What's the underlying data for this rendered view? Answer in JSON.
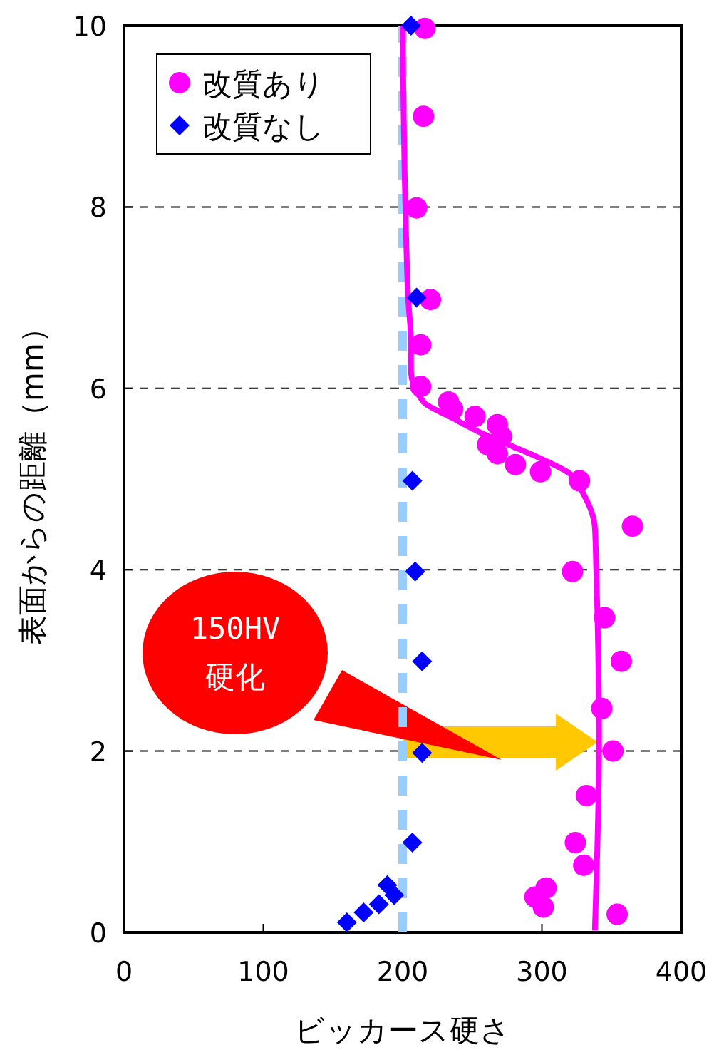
{
  "chart_data": {
    "type": "scatter",
    "xlabel": "ビッカース硬さ",
    "ylabel": "表面からの距離（mm）",
    "xlim": [
      0,
      400
    ],
    "xticks": [
      0,
      100,
      200,
      300,
      400
    ],
    "ylim": [
      0,
      10
    ],
    "yticks": [
      0,
      2,
      4,
      6,
      8,
      10
    ],
    "grid": "y",
    "legend": "top left",
    "annotations": [
      "150HV\n硬化"
    ],
    "series": [
      {
        "type": "line",
        "color": "#99ccff",
        "line_style": "dashed",
        "marker": "none",
        "x": [
          200,
          200
        ],
        "values": [
          0,
          10
        ]
      },
      {
        "type": "line",
        "color": "#ff00ff",
        "line_style": "solid",
        "marker": "none",
        "x": [
          200,
          202,
          204,
          206,
          206,
          215,
          235,
          259,
          279,
          300,
          320,
          330,
          338,
          339,
          341,
          338
        ],
        "values": [
          10,
          8,
          7,
          6.5,
          6.2,
          5.85,
          5.68,
          5.49,
          5.36,
          5.22,
          5.06,
          4.83,
          4.47,
          4,
          2.1,
          0.02
        ]
      },
      {
        "name": "改質あり",
        "color": "#ff00ff",
        "marker": "circle",
        "x": [
          216,
          215,
          210,
          220,
          213,
          213,
          233,
          236,
          252,
          268,
          271,
          261,
          268,
          281,
          299,
          327,
          365,
          322,
          345,
          357,
          343,
          351,
          332,
          324,
          330,
          303,
          295,
          301,
          354
        ],
        "values": [
          9.97,
          9,
          7.99,
          6.98,
          6.48,
          6.02,
          5.85,
          5.77,
          5.69,
          5.6,
          5.47,
          5.38,
          5.28,
          5.16,
          5.08,
          4.98,
          4.48,
          3.98,
          3.47,
          2.99,
          2.47,
          2,
          1.51,
          0.99,
          0.74,
          0.49,
          0.39,
          0.28,
          0.2
        ]
      },
      {
        "name": "改質なし",
        "color": "#0000ff",
        "marker": "diamond",
        "x": [
          206,
          210,
          207,
          209,
          214,
          214,
          207,
          189,
          194,
          183,
          172,
          160
        ],
        "values": [
          10,
          7,
          4.98,
          3.98,
          2.99,
          1.98,
          0.99,
          0.52,
          0.41,
          0.31,
          0.22,
          0.11
        ]
      }
    ]
  }
}
